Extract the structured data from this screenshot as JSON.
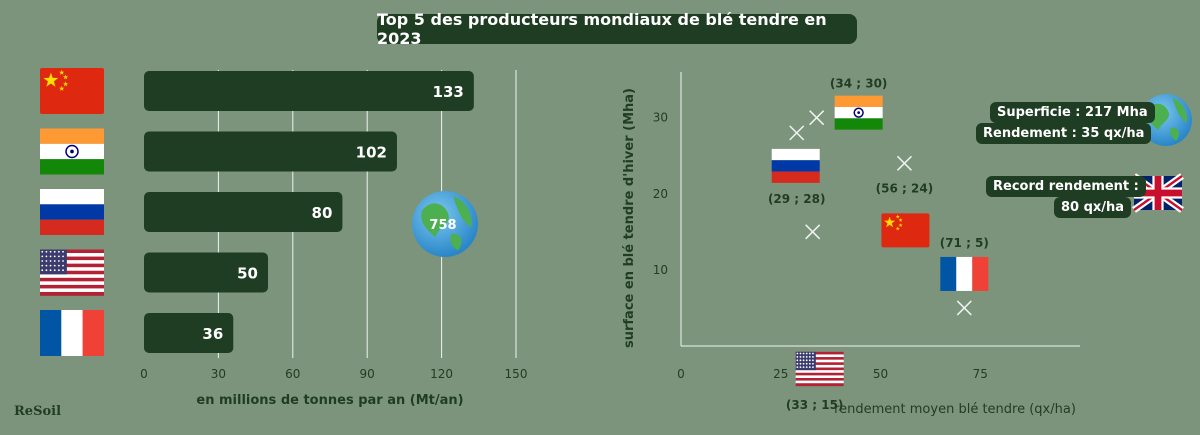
{
  "title": "Top 5 des producteurs mondiaux de blé tendre en 2023",
  "logo": "ReSoil",
  "colors": {
    "background": "#7c947c",
    "bar": "#1f3d22",
    "text": "#ffffff"
  },
  "chart_data": [
    {
      "type": "bar",
      "orientation": "horizontal",
      "categories": [
        "china-flag",
        "india-flag",
        "russia-flag",
        "usa-flag",
        "france-flag"
      ],
      "values": [
        133,
        102,
        80,
        50,
        36
      ],
      "world_total": "758",
      "xlabel": "en millions de tonnes par an (Mt/an)",
      "xticks": [
        0,
        30,
        60,
        90,
        120,
        150
      ],
      "xlim": [
        0,
        150
      ],
      "grid": true
    },
    {
      "type": "scatter",
      "xlabel": "rendement moyen blé tendre (qx/ha)",
      "ylabel": "surface en blé tendre  d'hiver (Mha)",
      "xticks": [
        0,
        25,
        50,
        75
      ],
      "yticks": [
        10,
        20,
        30
      ],
      "xlim": [
        0,
        100
      ],
      "ylim": [
        0,
        36
      ],
      "points": [
        {
          "flag": "india-flag",
          "x": 34,
          "y": 30,
          "label": "(34 ; 30)"
        },
        {
          "flag": "russia-flag",
          "x": 29,
          "y": 28,
          "label": "(29 ; 28)"
        },
        {
          "flag": "china-flag",
          "x": 56,
          "y": 24,
          "label": "(56 ; 24)"
        },
        {
          "flag": "usa-flag",
          "x": 33,
          "y": 15,
          "label": "(33 ; 15)"
        },
        {
          "flag": "france-flag",
          "x": 71,
          "y": 5,
          "label": "(71 ; 5)"
        }
      ]
    }
  ],
  "notes": {
    "world_line1": "Superficie : 217 Mha",
    "world_line2": "Rendement : 35 qx/ha",
    "uk_line1": "Record rendement :",
    "uk_line2": "80 qx/ha"
  },
  "icons": [
    "globe-icon",
    "uk-flag"
  ]
}
